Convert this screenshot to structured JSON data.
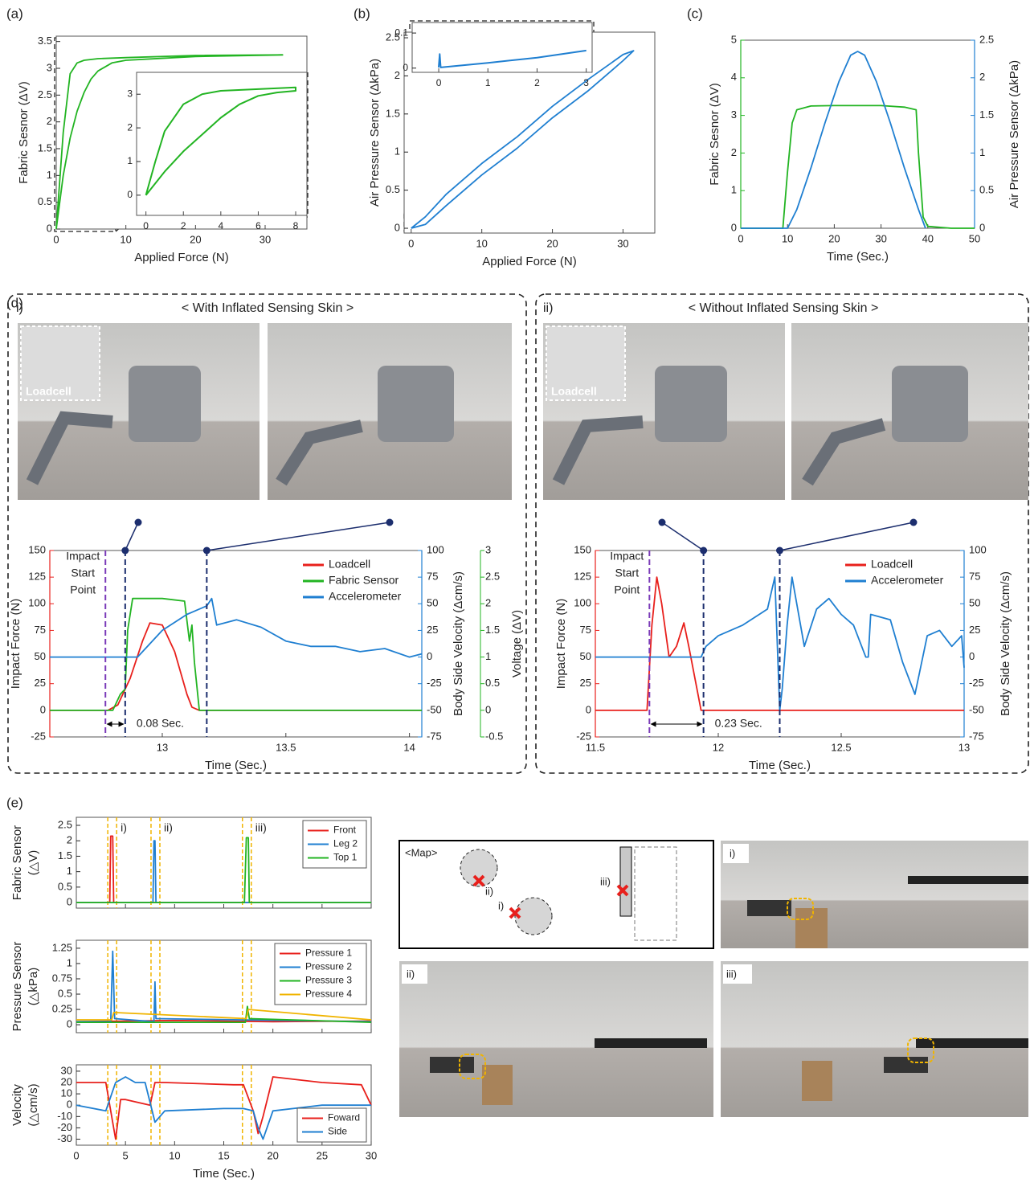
{
  "figure": {
    "panel_d": "(d)",
    "panel_e": "(e)",
    "d_left": {
      "label": "i)",
      "title": "< With Inflated Sensing Skin >",
      "callout": "Loadcell"
    },
    "d_right": {
      "label": "ii)",
      "title": "< Without Inflated Sensing Skin >",
      "callout": "Loadcell"
    },
    "map": {
      "title": "<Map>",
      "points": [
        "i)",
        "ii)",
        "iii)"
      ]
    },
    "photos": [
      "i)",
      "ii)",
      "iii)"
    ]
  },
  "chart_data": [
    {
      "type": "line",
      "panel": "(a)",
      "xlabel": "Applied Force (N)",
      "ylabel": "Fabric Sesnor (ΔV)",
      "xlim": [
        0,
        36
      ],
      "xticks": [
        0,
        10,
        20,
        30
      ],
      "ylim": [
        0,
        3.6
      ],
      "yticks": [
        0,
        0.5,
        1,
        1.5,
        2,
        2.5,
        3,
        3.5
      ],
      "series": [
        {
          "color": "#22b422",
          "x": [
            0,
            1,
            2,
            3,
            4,
            5,
            6,
            8,
            10,
            20,
            32.5,
            20,
            10,
            6,
            4,
            3,
            2,
            1,
            0
          ],
          "values": [
            0,
            1.0,
            1.7,
            2.2,
            2.55,
            2.8,
            2.95,
            3.1,
            3.15,
            3.22,
            3.25,
            3.24,
            3.2,
            3.18,
            3.15,
            3.1,
            2.9,
            1.8,
            0
          ]
        }
      ]
    },
    {
      "type": "line",
      "xlim": [
        -0.5,
        8.6
      ],
      "xticks": [
        0,
        2,
        4,
        6,
        8
      ],
      "ylim": [
        -0.6,
        3.65
      ],
      "yticks": [
        0,
        1,
        2,
        3
      ],
      "series": [
        {
          "color": "#22b422",
          "x": [
            0,
            1,
            2,
            3,
            4,
            5,
            6,
            7,
            8,
            8,
            6,
            4,
            3,
            2,
            1,
            0.5,
            0
          ],
          "values": [
            0,
            0.7,
            1.3,
            1.8,
            2.3,
            2.7,
            2.95,
            3.05,
            3.1,
            3.2,
            3.15,
            3.1,
            3.0,
            2.7,
            1.9,
            1.0,
            0
          ]
        }
      ]
    },
    {
      "type": "line",
      "panel": "(b)",
      "xlabel": "Applied Force (N)",
      "ylabel": "Air Pressure Sensor (ΔkPa)",
      "xlim": [
        -1,
        34.5
      ],
      "xticks": [
        0,
        10,
        20,
        30
      ],
      "ylim": [
        -0.063,
        2.574
      ],
      "yticks": [
        0,
        0.5,
        1,
        1.5,
        2,
        2.5
      ],
      "series": [
        {
          "color": "#1f7fd1",
          "x": [
            0,
            2,
            5,
            10,
            15,
            20,
            25,
            30,
            31.5,
            30,
            25,
            20,
            15,
            10,
            5,
            2,
            0
          ],
          "values": [
            0,
            0.05,
            0.3,
            0.7,
            1.05,
            1.45,
            1.8,
            2.2,
            2.33,
            2.28,
            1.95,
            1.6,
            1.2,
            0.85,
            0.45,
            0.15,
            0
          ]
        }
      ]
    },
    {
      "type": "line",
      "xlim": [
        -0.54,
        3.12
      ],
      "xticks": [
        0,
        1,
        2,
        3
      ],
      "ylim": [
        -0.012,
        0.13
      ],
      "yticks": [
        0,
        0.1
      ],
      "series": [
        {
          "color": "#1f7fd1",
          "x": [
            0,
            0.02,
            0.04,
            1,
            2,
            3
          ],
          "values": [
            0.002,
            0.04,
            0.002,
            0.015,
            0.03,
            0.05
          ]
        }
      ]
    },
    {
      "type": "line",
      "panel": "(c)",
      "xlabel": "Time (Sec.)",
      "ylabel": "Fabric Sesnor (ΔV)",
      "y2label": "Air Pressure Sensor (ΔkPa)",
      "xlim": [
        0,
        50
      ],
      "xticks": [
        0,
        10,
        20,
        30,
        40,
        50
      ],
      "ylim": [
        0,
        5
      ],
      "yticks": [
        0,
        1,
        2,
        3,
        4,
        5
      ],
      "y2lim": [
        0,
        2.5
      ],
      "y2ticks": [
        0,
        0.5,
        1,
        1.5,
        2,
        2.5
      ],
      "axis_colors": {
        "y": "#22b422",
        "y2": "#1f7fd1"
      },
      "series": [
        {
          "color": "#22b422",
          "x": [
            0,
            9,
            10,
            11,
            12,
            15,
            20,
            30,
            35,
            37.5,
            38,
            39,
            40,
            45,
            50
          ],
          "values": [
            0,
            0,
            1.5,
            2.8,
            3.15,
            3.25,
            3.26,
            3.26,
            3.22,
            3.15,
            2.0,
            0.3,
            0.05,
            0,
            0
          ]
        },
        {
          "color": "#1f7fd1",
          "axis": "y2",
          "x": [
            0,
            10,
            12,
            15,
            18,
            21,
            23.5,
            25,
            26.5,
            29,
            32,
            35,
            38,
            39.5
          ],
          "values": [
            0,
            0,
            0.25,
            0.8,
            1.4,
            1.95,
            2.3,
            2.35,
            2.3,
            1.95,
            1.4,
            0.8,
            0.25,
            0
          ]
        }
      ]
    },
    {
      "type": "line",
      "xlabel": "Time (Sec.)",
      "ylabel": "Impact Force (N)",
      "y2label": "Body Side Velocity (Δcm/s)",
      "y3label": "Voltage (ΔV)",
      "xlim": [
        12.545,
        14.05
      ],
      "xticks": [
        13,
        13.5,
        14
      ],
      "ylim": [
        -25,
        150
      ],
      "yticks": [
        -25,
        0,
        25,
        50,
        75,
        100,
        125,
        150
      ],
      "y2lim": [
        -75,
        100
      ],
      "y2ticks": [
        -75,
        -50,
        -25,
        0,
        25,
        50,
        75,
        100
      ],
      "y3lim": [
        -0.5,
        3
      ],
      "y3ticks": [
        -0.5,
        0,
        0.5,
        1,
        1.5,
        2,
        2.5,
        3
      ],
      "axis_colors": {
        "y": "#e8201c",
        "y2": "#1f7fd1",
        "y3": "#22b422"
      },
      "legend": "upper right",
      "legend_frame": false,
      "markers": [
        12.77,
        12.85,
        13.18
      ],
      "marker_colors": [
        "#7a3ab8",
        "#1c2e6e",
        "#1c2e6e"
      ],
      "annotation": [
        "Impact",
        "Start",
        "Point"
      ],
      "interval_label": "0.08 Sec.",
      "series": [
        {
          "name": "Loadcell",
          "color": "#e8201c",
          "x": [
            12.545,
            12.78,
            12.82,
            12.87,
            12.92,
            12.95,
            13.0,
            13.05,
            13.1,
            13.12,
            13.15,
            14.05
          ],
          "values": [
            0,
            0,
            5,
            30,
            65,
            82,
            80,
            55,
            15,
            3,
            0,
            0
          ]
        },
        {
          "name": "Fabric Sensor",
          "color": "#22b422",
          "axis": "y3",
          "x": [
            12.545,
            12.8,
            12.83,
            12.85,
            12.86,
            12.88,
            13.0,
            13.09,
            13.11,
            13.12,
            13.13,
            13.15,
            14.05
          ],
          "values": [
            0,
            0,
            0.3,
            0.4,
            1.5,
            2.1,
            2.1,
            2.05,
            1.3,
            1.6,
            0.9,
            0,
            0
          ]
        },
        {
          "name": "Accelerometer",
          "color": "#1f7fd1",
          "axis": "y2",
          "x": [
            12.545,
            12.9,
            13.0,
            13.1,
            13.18,
            13.2,
            13.22,
            13.3,
            13.4,
            13.5,
            13.6,
            13.7,
            13.8,
            13.9,
            14.0,
            14.05
          ],
          "values": [
            0,
            0,
            25,
            40,
            48,
            55,
            30,
            35,
            28,
            15,
            10,
            10,
            5,
            8,
            0,
            3
          ]
        }
      ]
    },
    {
      "type": "line",
      "xlabel": "Time (Sec.)",
      "ylabel": "Impact Force (N)",
      "y2label": "Body Side Velocity (Δcm/s)",
      "xlim": [
        11.5,
        13
      ],
      "xticks": [
        11.5,
        12,
        12.5,
        13
      ],
      "ylim": [
        -25,
        150
      ],
      "yticks": [
        -25,
        0,
        25,
        50,
        75,
        100,
        125,
        150
      ],
      "y2lim": [
        -75,
        100
      ],
      "y2ticks": [
        -75,
        -50,
        -25,
        0,
        25,
        50,
        75,
        100
      ],
      "axis_colors": {
        "y": "#e8201c",
        "y2": "#1f7fd1"
      },
      "legend": "upper right",
      "legend_frame": false,
      "markers": [
        11.72,
        11.94,
        12.25
      ],
      "marker_colors": [
        "#7a3ab8",
        "#1c2e6e",
        "#1c2e6e"
      ],
      "annotation": [
        "Impact",
        "Start",
        "Point"
      ],
      "interval_label": "0.23 Sec.",
      "series": [
        {
          "name": "Loadcell",
          "color": "#e8201c",
          "x": [
            11.5,
            11.71,
            11.73,
            11.75,
            11.77,
            11.8,
            11.83,
            11.86,
            11.88,
            11.93,
            13
          ],
          "values": [
            0,
            0,
            80,
            125,
            100,
            50,
            60,
            82,
            60,
            0,
            0
          ]
        },
        {
          "name": "Accelerometer",
          "color": "#1f7fd1",
          "axis": "y2",
          "x": [
            11.5,
            11.93,
            11.95,
            12.0,
            12.1,
            12.2,
            12.23,
            12.25,
            12.26,
            12.28,
            12.3,
            12.35,
            12.4,
            12.45,
            12.5,
            12.55,
            12.6,
            12.61,
            12.62,
            12.7,
            12.75,
            12.8,
            12.85,
            12.9,
            12.95,
            12.99,
            13
          ],
          "values": [
            0,
            0,
            10,
            20,
            30,
            45,
            75,
            -50,
            -30,
            30,
            75,
            10,
            45,
            55,
            40,
            30,
            0,
            0,
            40,
            35,
            -5,
            -35,
            20,
            25,
            10,
            20,
            -10
          ]
        }
      ]
    },
    {
      "type": "line",
      "ylabel": [
        "Fabric Sensor",
        "(△V)"
      ],
      "xlim": [
        0,
        30
      ],
      "xticks": [
        0,
        5,
        10,
        15,
        20,
        25,
        30
      ],
      "show_xtick_labels": false,
      "ylim": [
        -0.18,
        2.76
      ],
      "yticks": [
        0,
        0.5,
        1,
        1.5,
        2,
        2.5
      ],
      "legend": "upper right",
      "legend_frame": true,
      "regions": [
        [
          3.2,
          4.1
        ],
        [
          7.6,
          8.5
        ],
        [
          16.9,
          17.8
        ]
      ],
      "region_labels": [
        "i)",
        "ii)",
        "iii)"
      ],
      "series": [
        {
          "name": "Front",
          "color": "#e8201c",
          "x": [
            0,
            3.4,
            3.5,
            3.7,
            3.8,
            4,
            30
          ],
          "values": [
            0,
            0,
            2.15,
            2.15,
            0,
            0,
            0
          ]
        },
        {
          "name": "Leg 2",
          "color": "#1f7fd1",
          "x": [
            0,
            7.8,
            7.9,
            8.0,
            8.1,
            30
          ],
          "values": [
            0,
            0,
            2.0,
            2.0,
            0,
            0
          ]
        },
        {
          "name": "Top 1",
          "color": "#22b422",
          "x": [
            0,
            17.1,
            17.3,
            17.5,
            17.6,
            30
          ],
          "values": [
            0,
            0,
            2.1,
            2.1,
            0,
            0
          ]
        }
      ]
    },
    {
      "type": "line",
      "ylabel": [
        "Pressure Sensor",
        "(△kPa)"
      ],
      "xlim": [
        0,
        30
      ],
      "xticks": [
        0,
        5,
        10,
        15,
        20,
        25,
        30
      ],
      "show_xtick_labels": false,
      "ylim": [
        -0.13,
        1.38
      ],
      "yticks": [
        0,
        0.25,
        0.5,
        0.75,
        1,
        1.25
      ],
      "legend": "upper right",
      "legend_frame": true,
      "regions": [
        [
          3.2,
          4.1
        ],
        [
          7.6,
          8.5
        ],
        [
          16.9,
          17.8
        ]
      ],
      "series": [
        {
          "name": "Pressure 1",
          "color": "#e8201c",
          "x": [
            0,
            10,
            20,
            30
          ],
          "values": [
            0.05,
            0.07,
            0.05,
            0.06
          ]
        },
        {
          "name": "Pressure 2",
          "color": "#1f7fd1",
          "x": [
            0,
            3.5,
            3.7,
            3.9,
            7.9,
            8.0,
            8.1,
            30
          ],
          "values": [
            0.05,
            0.05,
            1.2,
            0.1,
            0.05,
            0.7,
            0.1,
            0.05
          ]
        },
        {
          "name": "Pressure 3",
          "color": "#22b422",
          "x": [
            0,
            17.2,
            17.4,
            17.6,
            30
          ],
          "values": [
            0.04,
            0.04,
            0.3,
            0.1,
            0.04
          ]
        },
        {
          "name": "Pressure 4",
          "color": "#f0b400",
          "x": [
            0,
            3.6,
            3.8,
            17.3,
            17.5,
            30
          ],
          "values": [
            0.08,
            0.08,
            0.2,
            0.1,
            0.25,
            0.08
          ]
        }
      ]
    },
    {
      "type": "line",
      "xlabel": "Time (Sec.)",
      "ylabel": [
        "Velocity",
        "(△cm/s)"
      ],
      "xlim": [
        0,
        30
      ],
      "xticks": [
        0,
        5,
        10,
        15,
        20,
        25,
        30
      ],
      "ylim": [
        -35.3,
        35.6
      ],
      "yticks": [
        -30,
        -20,
        -10,
        0,
        10,
        20,
        30
      ],
      "legend": "lower right",
      "legend_frame": true,
      "regions": [
        [
          3.2,
          4.1
        ],
        [
          7.6,
          8.5
        ],
        [
          16.9,
          17.8
        ]
      ],
      "series": [
        {
          "name": "Foward",
          "color": "#e8201c",
          "x": [
            0,
            3,
            3.5,
            4,
            4.5,
            5,
            7.5,
            8,
            9,
            16,
            17,
            18,
            18.5,
            19,
            20,
            25,
            29,
            30
          ],
          "values": [
            20,
            20,
            -5,
            -30,
            5,
            5,
            0,
            20,
            20,
            18,
            18,
            -5,
            -25,
            -10,
            25,
            20,
            18,
            0
          ]
        },
        {
          "name": "Side",
          "color": "#1f7fd1",
          "x": [
            0,
            3,
            4,
            5,
            6,
            7,
            8,
            9,
            15,
            17,
            18,
            18.5,
            19,
            20,
            25,
            30
          ],
          "values": [
            0,
            -5,
            20,
            25,
            20,
            20,
            -15,
            -5,
            -3,
            -3,
            -5,
            -20,
            -30,
            -5,
            0,
            0
          ]
        }
      ]
    }
  ]
}
